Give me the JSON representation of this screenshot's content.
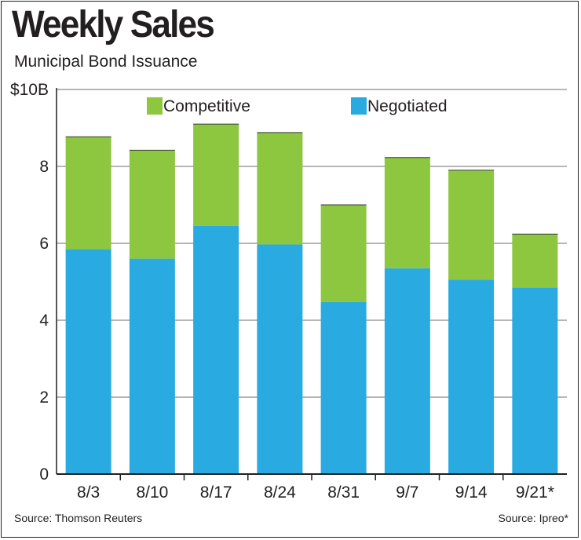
{
  "title": "Weekly Sales",
  "subtitle": "Municipal Bond Issuance",
  "source_left": "Source: Thomson Reuters",
  "source_right": "Source: Ipreo*",
  "chart_data": {
    "type": "bar",
    "stacked": true,
    "title": "Weekly Sales",
    "subtitle": "Municipal Bond Issuance",
    "categories": [
      "8/3",
      "8/10",
      "8/17",
      "8/24",
      "8/31",
      "9/7",
      "9/14",
      "9/21*"
    ],
    "series": [
      {
        "name": "Negotiated",
        "color": "#29abe2",
        "values": [
          5.85,
          5.6,
          6.45,
          5.97,
          4.47,
          5.35,
          5.05,
          4.85
        ]
      },
      {
        "name": "Competitive",
        "color": "#8dc63f",
        "values": [
          2.92,
          2.82,
          2.65,
          2.91,
          2.53,
          2.88,
          2.85,
          1.39
        ]
      }
    ],
    "legend_order": [
      "Competitive",
      "Negotiated"
    ],
    "legend_position": "top",
    "y_ticks": [
      {
        "value": 0,
        "label": "0"
      },
      {
        "value": 2,
        "label": "2"
      },
      {
        "value": 4,
        "label": "4"
      },
      {
        "value": 6,
        "label": "6"
      },
      {
        "value": 8,
        "label": "8"
      },
      {
        "value": 10,
        "label": "$10B"
      }
    ],
    "ylim": [
      0,
      10
    ],
    "grid": true,
    "xlabel": "",
    "ylabel": ""
  }
}
